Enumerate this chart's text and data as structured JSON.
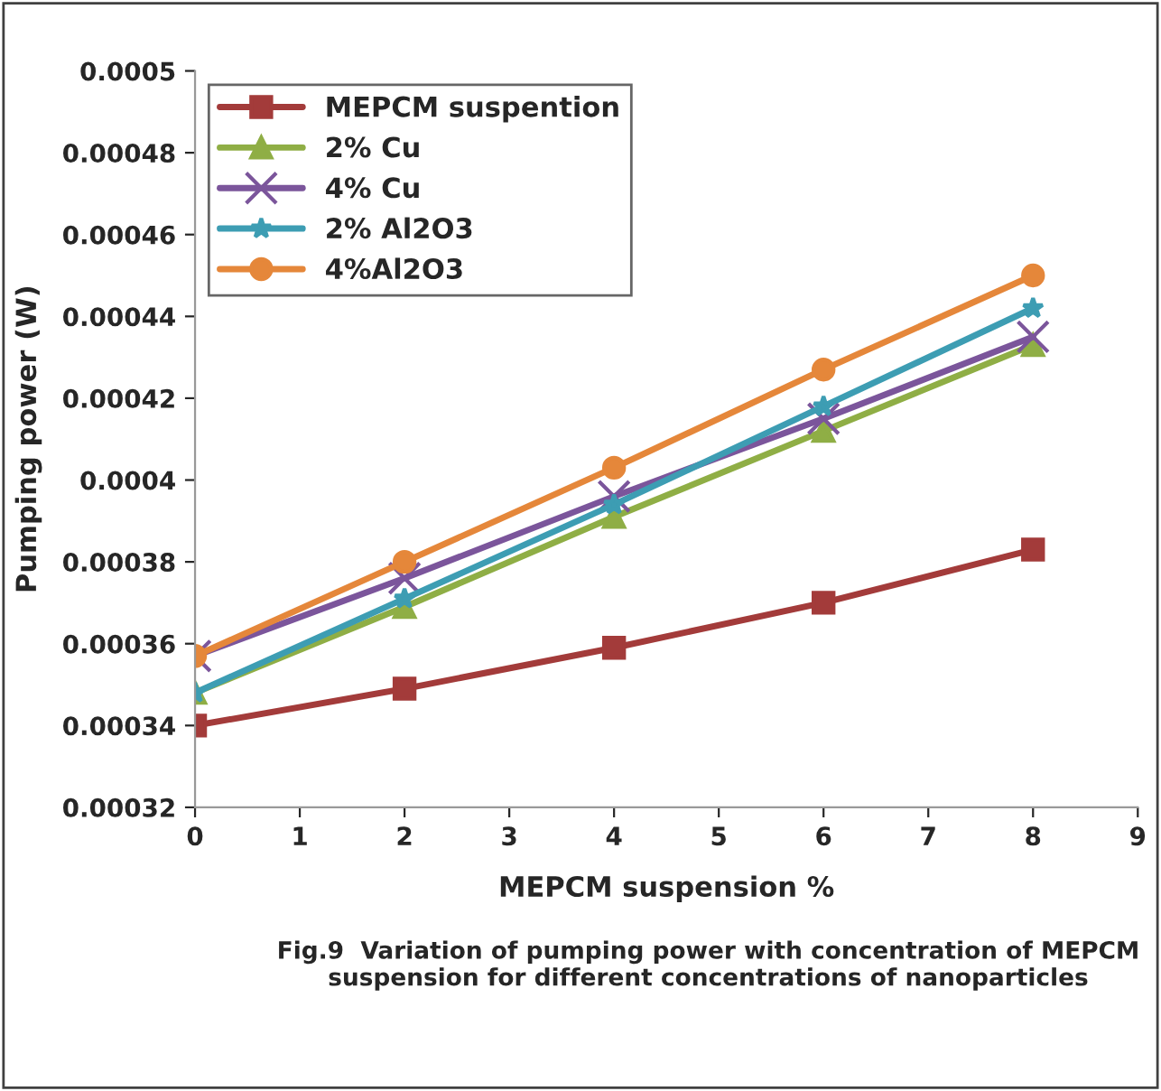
{
  "chart_data": {
    "type": "line",
    "xlabel": "MEPCM suspension %",
    "ylabel": "Pumping power (W)",
    "x": [
      0,
      2,
      4,
      6,
      8
    ],
    "xlim": [
      0,
      9
    ],
    "xticks": [
      0,
      1,
      2,
      3,
      4,
      5,
      6,
      7,
      8,
      9
    ],
    "ylim": [
      0.00032,
      0.0005
    ],
    "yticks": [
      0.00032,
      0.00034,
      0.00036,
      0.00038,
      0.0004,
      0.00042,
      0.00044,
      0.00046,
      0.00048,
      0.0005
    ],
    "grid": false,
    "legend": "top left",
    "series": [
      {
        "name": "MEPCM suspention",
        "color": "#a33b3a",
        "marker": "square",
        "values": [
          0.00034,
          0.000349,
          0.000359,
          0.00037,
          0.000383
        ]
      },
      {
        "name": "2% Cu",
        "color": "#8fae45",
        "marker": "triangle",
        "values": [
          0.000348,
          0.000369,
          0.000391,
          0.000412,
          0.000433
        ]
      },
      {
        "name": "4% Cu",
        "color": "#7b559b",
        "marker": "cross",
        "values": [
          0.000357,
          0.000376,
          0.000396,
          0.000415,
          0.000435
        ]
      },
      {
        "name": "2% Al2O3",
        "color": "#3d9db3",
        "marker": "star",
        "values": [
          0.000348,
          0.000371,
          0.000394,
          0.000418,
          0.000442
        ]
      },
      {
        "name": "4%Al2O3",
        "color": "#e5873a",
        "marker": "circle",
        "values": [
          0.000357,
          0.00038,
          0.000403,
          0.000427,
          0.00045
        ]
      }
    ],
    "annotations": [
      "Fig.9  Variation of pumping power with concentration of MEPCM suspension for different concentrations of nanoparticles"
    ]
  }
}
